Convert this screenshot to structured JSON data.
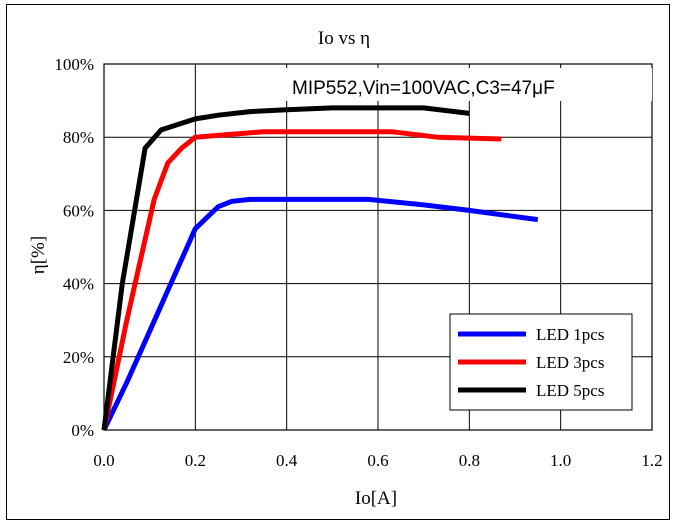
{
  "chart_data": {
    "type": "line",
    "title": "Io  vs  η",
    "xlabel": "Io[A]",
    "ylabel": "η[%]",
    "annotation": "MIP552,Vin=100VAC,C3=47μF",
    "xlim": [
      0.0,
      1.2
    ],
    "ylim": [
      0,
      100
    ],
    "x_ticks": [
      0.0,
      0.2,
      0.4,
      0.6,
      0.8,
      1.0,
      1.2
    ],
    "x_tick_labels": [
      "0.0",
      "0.2",
      "0.4",
      "0.6",
      "0.8",
      "1.0",
      "1.2"
    ],
    "y_ticks": [
      0,
      20,
      40,
      60,
      80,
      100
    ],
    "y_tick_labels": [
      "0%",
      "20%",
      "40%",
      "60%",
      "80%",
      "100%"
    ],
    "grid": true,
    "legend_position": "bottom-right",
    "series": [
      {
        "name": "LED 1pcs",
        "color": "#0000ff",
        "x": [
          0.0,
          0.05,
          0.1,
          0.15,
          0.2,
          0.25,
          0.28,
          0.32,
          0.4,
          0.5,
          0.58,
          0.7,
          0.8,
          0.95
        ],
        "y": [
          0,
          13,
          27,
          41,
          55,
          61,
          62.5,
          63,
          63,
          63,
          63,
          61.5,
          60,
          57.5
        ]
      },
      {
        "name": "LED 3pcs",
        "color": "#ff0000",
        "x": [
          0.0,
          0.05,
          0.11,
          0.14,
          0.17,
          0.2,
          0.25,
          0.35,
          0.5,
          0.63,
          0.73,
          0.87
        ],
        "y": [
          0,
          30,
          63,
          73,
          77,
          80,
          80.5,
          81.5,
          81.5,
          81.5,
          80,
          79.5
        ]
      },
      {
        "name": "LED 5pcs",
        "color": "#000000",
        "x": [
          0.0,
          0.04,
          0.09,
          0.125,
          0.15,
          0.2,
          0.25,
          0.32,
          0.4,
          0.5,
          0.6,
          0.7,
          0.8
        ],
        "y": [
          0,
          40,
          77,
          82,
          83,
          85,
          86,
          87,
          87.5,
          88,
          88,
          88,
          86.5
        ]
      }
    ]
  }
}
